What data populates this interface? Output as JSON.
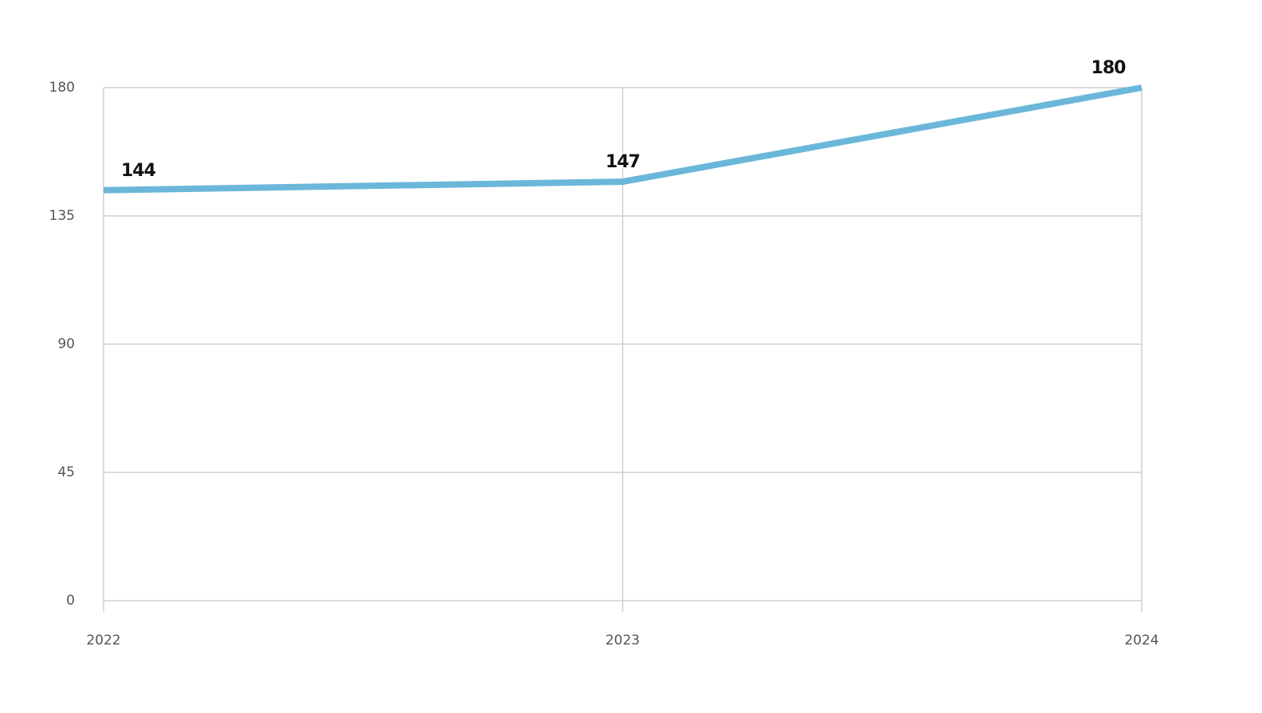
{
  "chart_data": {
    "type": "line",
    "x": [
      2022,
      2023,
      2024
    ],
    "series": [
      {
        "color": "#6bb7da",
        "values": [
          144,
          147,
          180
        ]
      }
    ],
    "xlim": [
      2022,
      2024
    ],
    "xticks": [
      2022,
      2023,
      2024
    ],
    "ylim": [
      0,
      180
    ],
    "yticks": [
      0,
      45,
      90,
      135,
      180
    ],
    "grid": true
  }
}
